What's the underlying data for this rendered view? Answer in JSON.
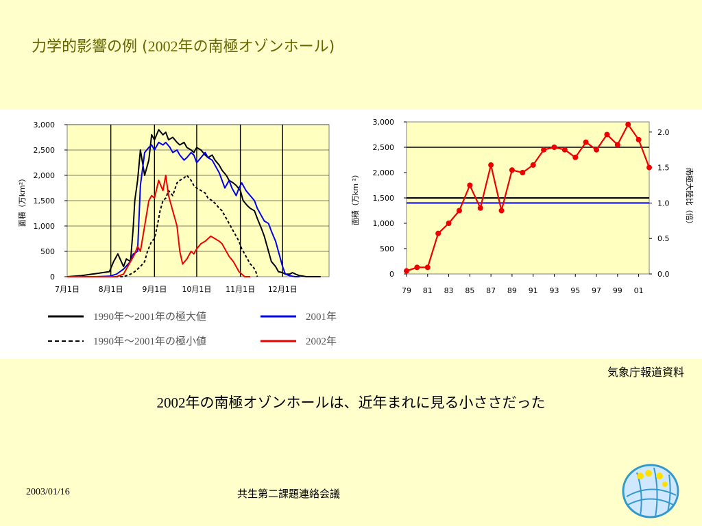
{
  "slide": {
    "title_prefix": "力学的影響の例 (",
    "title_year": "2002",
    "title_suffix": "年の南極オゾンホール)",
    "source": "気象庁報道資料",
    "caption_year": "2002",
    "caption_text": "年の南極オゾンホールは、近年まれに見る小ささだった",
    "footer_date": "2003/01/16",
    "footer_meeting": "共生第二課題連絡会議"
  },
  "colors": {
    "background": "#ffffcc",
    "plot_bg": "#ffffc0",
    "title": "#666600",
    "red": "#ee0000",
    "blue": "#0000ee"
  },
  "chart_data": [
    {
      "type": "line",
      "ylabel": "面積（万km²）",
      "ylim": [
        0,
        3000
      ],
      "yticks": [
        "3,000",
        "2,500",
        "2,000",
        "1,500",
        "1,000",
        "500",
        "0"
      ],
      "yvalues": [
        3000,
        2500,
        2000,
        1500,
        1000,
        500,
        0
      ],
      "xtick_labels": [
        "7月1日",
        "8月1日",
        "9月1日",
        "10月1日",
        "11月1日",
        "12月1日"
      ],
      "xtick_days": [
        0,
        31,
        62,
        92,
        123,
        153
      ],
      "xlim": [
        0,
        186
      ],
      "grid": true,
      "series": [
        {
          "name": "1990年～2001年の極大値",
          "color": "#000000",
          "style": "solid",
          "x": [
            0,
            10,
            15,
            20,
            25,
            30,
            33,
            36,
            40,
            42,
            45,
            47,
            48,
            50,
            52,
            55,
            58,
            60,
            62,
            65,
            68,
            70,
            72,
            75,
            78,
            80,
            83,
            85,
            88,
            90,
            92,
            95,
            98,
            100,
            103,
            105,
            108,
            110,
            113,
            115,
            118,
            120,
            123,
            125,
            128,
            130,
            133,
            135,
            138,
            140,
            143,
            145,
            148,
            150,
            153,
            155,
            158,
            160,
            163,
            165,
            168,
            170,
            172,
            175,
            178,
            180
          ],
          "y": [
            0,
            20,
            40,
            60,
            80,
            100,
            300,
            450,
            200,
            350,
            300,
            1000,
            1500,
            1900,
            2500,
            2000,
            2300,
            2800,
            2700,
            2900,
            2800,
            2850,
            2700,
            2750,
            2650,
            2600,
            2650,
            2550,
            2500,
            2450,
            2550,
            2500,
            2400,
            2350,
            2400,
            2300,
            2200,
            2100,
            2000,
            1900,
            1850,
            1800,
            1700,
            1500,
            1400,
            1350,
            1300,
            1150,
            950,
            800,
            500,
            300,
            200,
            100,
            80,
            50,
            50,
            80,
            40,
            20,
            10,
            0,
            0,
            0,
            0,
            0
          ]
        },
        {
          "name": "1990年～2001年の極小値",
          "color": "#000000",
          "style": "dashed",
          "x": [
            0,
            40,
            45,
            48,
            50,
            52,
            55,
            57,
            60,
            62,
            64,
            66,
            68,
            70,
            72,
            75,
            78,
            80,
            83,
            85,
            88,
            90,
            92,
            95,
            98,
            100,
            103,
            105,
            108,
            110,
            113,
            115,
            118,
            120,
            122,
            124,
            126,
            128,
            130,
            132,
            134,
            135
          ],
          "y": [
            0,
            0,
            50,
            100,
            150,
            200,
            300,
            500,
            700,
            750,
            1000,
            1300,
            1500,
            1550,
            1700,
            1600,
            1850,
            1900,
            1950,
            2000,
            1900,
            1800,
            1750,
            1700,
            1650,
            1550,
            1500,
            1450,
            1350,
            1300,
            1150,
            1050,
            900,
            800,
            700,
            550,
            450,
            350,
            250,
            200,
            100,
            0
          ]
        },
        {
          "name": "2001年",
          "color": "#0000ee",
          "style": "solid",
          "x": [
            0,
            20,
            30,
            35,
            40,
            45,
            47,
            50,
            52,
            55,
            58,
            60,
            62,
            65,
            68,
            70,
            73,
            75,
            78,
            80,
            83,
            85,
            88,
            90,
            92,
            95,
            98,
            100,
            103,
            105,
            108,
            110,
            112,
            114,
            115,
            117,
            119,
            120,
            122,
            124,
            125,
            127,
            130,
            133,
            135,
            138,
            140,
            143,
            145,
            148,
            150,
            153,
            155,
            158,
            160,
            162,
            165
          ],
          "y": [
            0,
            0,
            10,
            50,
            150,
            300,
            450,
            500,
            1800,
            2450,
            2550,
            2600,
            2500,
            2650,
            2600,
            2650,
            2550,
            2450,
            2500,
            2400,
            2300,
            2350,
            2450,
            2400,
            2250,
            2350,
            2450,
            2350,
            2300,
            2200,
            2050,
            1900,
            1750,
            1850,
            1900,
            1750,
            1650,
            1600,
            1750,
            1850,
            1800,
            1700,
            1600,
            1500,
            1350,
            1200,
            1100,
            1050,
            900,
            700,
            500,
            200,
            50,
            20,
            10,
            0,
            0
          ]
        },
        {
          "name": "2002年",
          "color": "#ee0000",
          "style": "solid",
          "x": [
            0,
            35,
            40,
            43,
            45,
            48,
            50,
            52,
            55,
            58,
            60,
            62,
            65,
            68,
            70,
            72,
            75,
            78,
            80,
            82,
            85,
            88,
            90,
            92,
            95,
            98,
            100,
            102,
            105,
            108,
            110,
            112,
            115,
            118,
            120,
            122,
            124,
            126,
            128,
            130
          ],
          "y": [
            0,
            0,
            50,
            200,
            300,
            450,
            600,
            500,
            1000,
            1500,
            1600,
            1550,
            1900,
            1700,
            2000,
            1600,
            1300,
            1000,
            500,
            250,
            350,
            500,
            450,
            550,
            650,
            700,
            750,
            800,
            750,
            700,
            650,
            550,
            400,
            300,
            200,
            100,
            50,
            0,
            0,
            0
          ]
        }
      ]
    },
    {
      "type": "line",
      "ylabel": "面積（万km ²）",
      "y2label": "南極大陸比（倍）",
      "ylim": [
        0,
        3000
      ],
      "yticks": [
        "3,000",
        "2,500",
        "2,000",
        "1,500",
        "1,000",
        "500",
        "0"
      ],
      "yvalues": [
        3000,
        2500,
        2000,
        1500,
        1000,
        500,
        0
      ],
      "y2ticks": [
        "2.0",
        "1.5",
        "1.0",
        "0.5",
        "0.0"
      ],
      "y2values": [
        2.0,
        1.5,
        1.0,
        0.5,
        0.0
      ],
      "y2_per_unit": 1400,
      "xtick_labels": [
        "79",
        "81",
        "83",
        "85",
        "87",
        "89",
        "91",
        "93",
        "95",
        "97",
        "99",
        "01"
      ],
      "xtick_years": [
        1979,
        1981,
        1983,
        1985,
        1987,
        1989,
        1991,
        1993,
        1995,
        1997,
        1999,
        2001
      ],
      "xlim": [
        1979,
        2002
      ],
      "reference_lines": [
        {
          "value": 1500,
          "color": "#000000"
        },
        {
          "value": 1400,
          "color": "#0000ee"
        }
      ],
      "series": [
        {
          "name": "",
          "color": "#ee0000",
          "markers": true,
          "x": [
            1979,
            1980,
            1981,
            1982,
            1983,
            1984,
            1985,
            1986,
            1987,
            1988,
            1989,
            1990,
            1991,
            1992,
            1993,
            1994,
            1995,
            1996,
            1997,
            1998,
            1999,
            2000,
            2001,
            2002
          ],
          "y": [
            60,
            130,
            130,
            800,
            1000,
            1250,
            1750,
            1300,
            2150,
            1250,
            2050,
            2000,
            2150,
            2450,
            2500,
            2450,
            2300,
            2600,
            2450,
            2750,
            2550,
            2950,
            2650,
            2100
          ]
        }
      ]
    }
  ],
  "left_legend": [
    {
      "label": "1990年～2001年の極大値",
      "color": "#000000",
      "style": "solid"
    },
    {
      "label": "2001年",
      "color": "#0000ee",
      "style": "solid"
    },
    {
      "label": "1990年～2001年の極小値",
      "color": "#000000",
      "style": "dashed"
    },
    {
      "label": "2002年",
      "color": "#ee0000",
      "style": "solid"
    }
  ],
  "logo": {
    "icon": "globe-logo-icon"
  }
}
